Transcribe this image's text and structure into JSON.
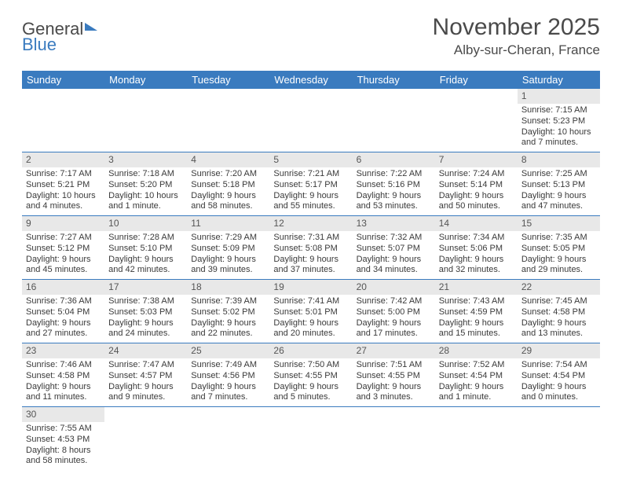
{
  "logo": {
    "part1": "General",
    "part2": "Blue"
  },
  "title": "November 2025",
  "location": "Alby-sur-Cheran, France",
  "colors": {
    "accent": "#3a7bbf",
    "headerText": "#ffffff",
    "dayNumBg": "#e8e8e8",
    "text": "#3a3a3a"
  },
  "weekdays": [
    "Sunday",
    "Monday",
    "Tuesday",
    "Wednesday",
    "Thursday",
    "Friday",
    "Saturday"
  ],
  "weeks": [
    [
      null,
      null,
      null,
      null,
      null,
      null,
      {
        "n": "1",
        "sr": "Sunrise: 7:15 AM",
        "ss": "Sunset: 5:23 PM",
        "d1": "Daylight: 10 hours",
        "d2": "and 7 minutes."
      }
    ],
    [
      {
        "n": "2",
        "sr": "Sunrise: 7:17 AM",
        "ss": "Sunset: 5:21 PM",
        "d1": "Daylight: 10 hours",
        "d2": "and 4 minutes."
      },
      {
        "n": "3",
        "sr": "Sunrise: 7:18 AM",
        "ss": "Sunset: 5:20 PM",
        "d1": "Daylight: 10 hours",
        "d2": "and 1 minute."
      },
      {
        "n": "4",
        "sr": "Sunrise: 7:20 AM",
        "ss": "Sunset: 5:18 PM",
        "d1": "Daylight: 9 hours",
        "d2": "and 58 minutes."
      },
      {
        "n": "5",
        "sr": "Sunrise: 7:21 AM",
        "ss": "Sunset: 5:17 PM",
        "d1": "Daylight: 9 hours",
        "d2": "and 55 minutes."
      },
      {
        "n": "6",
        "sr": "Sunrise: 7:22 AM",
        "ss": "Sunset: 5:16 PM",
        "d1": "Daylight: 9 hours",
        "d2": "and 53 minutes."
      },
      {
        "n": "7",
        "sr": "Sunrise: 7:24 AM",
        "ss": "Sunset: 5:14 PM",
        "d1": "Daylight: 9 hours",
        "d2": "and 50 minutes."
      },
      {
        "n": "8",
        "sr": "Sunrise: 7:25 AM",
        "ss": "Sunset: 5:13 PM",
        "d1": "Daylight: 9 hours",
        "d2": "and 47 minutes."
      }
    ],
    [
      {
        "n": "9",
        "sr": "Sunrise: 7:27 AM",
        "ss": "Sunset: 5:12 PM",
        "d1": "Daylight: 9 hours",
        "d2": "and 45 minutes."
      },
      {
        "n": "10",
        "sr": "Sunrise: 7:28 AM",
        "ss": "Sunset: 5:10 PM",
        "d1": "Daylight: 9 hours",
        "d2": "and 42 minutes."
      },
      {
        "n": "11",
        "sr": "Sunrise: 7:29 AM",
        "ss": "Sunset: 5:09 PM",
        "d1": "Daylight: 9 hours",
        "d2": "and 39 minutes."
      },
      {
        "n": "12",
        "sr": "Sunrise: 7:31 AM",
        "ss": "Sunset: 5:08 PM",
        "d1": "Daylight: 9 hours",
        "d2": "and 37 minutes."
      },
      {
        "n": "13",
        "sr": "Sunrise: 7:32 AM",
        "ss": "Sunset: 5:07 PM",
        "d1": "Daylight: 9 hours",
        "d2": "and 34 minutes."
      },
      {
        "n": "14",
        "sr": "Sunrise: 7:34 AM",
        "ss": "Sunset: 5:06 PM",
        "d1": "Daylight: 9 hours",
        "d2": "and 32 minutes."
      },
      {
        "n": "15",
        "sr": "Sunrise: 7:35 AM",
        "ss": "Sunset: 5:05 PM",
        "d1": "Daylight: 9 hours",
        "d2": "and 29 minutes."
      }
    ],
    [
      {
        "n": "16",
        "sr": "Sunrise: 7:36 AM",
        "ss": "Sunset: 5:04 PM",
        "d1": "Daylight: 9 hours",
        "d2": "and 27 minutes."
      },
      {
        "n": "17",
        "sr": "Sunrise: 7:38 AM",
        "ss": "Sunset: 5:03 PM",
        "d1": "Daylight: 9 hours",
        "d2": "and 24 minutes."
      },
      {
        "n": "18",
        "sr": "Sunrise: 7:39 AM",
        "ss": "Sunset: 5:02 PM",
        "d1": "Daylight: 9 hours",
        "d2": "and 22 minutes."
      },
      {
        "n": "19",
        "sr": "Sunrise: 7:41 AM",
        "ss": "Sunset: 5:01 PM",
        "d1": "Daylight: 9 hours",
        "d2": "and 20 minutes."
      },
      {
        "n": "20",
        "sr": "Sunrise: 7:42 AM",
        "ss": "Sunset: 5:00 PM",
        "d1": "Daylight: 9 hours",
        "d2": "and 17 minutes."
      },
      {
        "n": "21",
        "sr": "Sunrise: 7:43 AM",
        "ss": "Sunset: 4:59 PM",
        "d1": "Daylight: 9 hours",
        "d2": "and 15 minutes."
      },
      {
        "n": "22",
        "sr": "Sunrise: 7:45 AM",
        "ss": "Sunset: 4:58 PM",
        "d1": "Daylight: 9 hours",
        "d2": "and 13 minutes."
      }
    ],
    [
      {
        "n": "23",
        "sr": "Sunrise: 7:46 AM",
        "ss": "Sunset: 4:58 PM",
        "d1": "Daylight: 9 hours",
        "d2": "and 11 minutes."
      },
      {
        "n": "24",
        "sr": "Sunrise: 7:47 AM",
        "ss": "Sunset: 4:57 PM",
        "d1": "Daylight: 9 hours",
        "d2": "and 9 minutes."
      },
      {
        "n": "25",
        "sr": "Sunrise: 7:49 AM",
        "ss": "Sunset: 4:56 PM",
        "d1": "Daylight: 9 hours",
        "d2": "and 7 minutes."
      },
      {
        "n": "26",
        "sr": "Sunrise: 7:50 AM",
        "ss": "Sunset: 4:55 PM",
        "d1": "Daylight: 9 hours",
        "d2": "and 5 minutes."
      },
      {
        "n": "27",
        "sr": "Sunrise: 7:51 AM",
        "ss": "Sunset: 4:55 PM",
        "d1": "Daylight: 9 hours",
        "d2": "and 3 minutes."
      },
      {
        "n": "28",
        "sr": "Sunrise: 7:52 AM",
        "ss": "Sunset: 4:54 PM",
        "d1": "Daylight: 9 hours",
        "d2": "and 1 minute."
      },
      {
        "n": "29",
        "sr": "Sunrise: 7:54 AM",
        "ss": "Sunset: 4:54 PM",
        "d1": "Daylight: 9 hours",
        "d2": "and 0 minutes."
      }
    ],
    [
      {
        "n": "30",
        "sr": "Sunrise: 7:55 AM",
        "ss": "Sunset: 4:53 PM",
        "d1": "Daylight: 8 hours",
        "d2": "and 58 minutes."
      },
      null,
      null,
      null,
      null,
      null,
      null
    ]
  ]
}
